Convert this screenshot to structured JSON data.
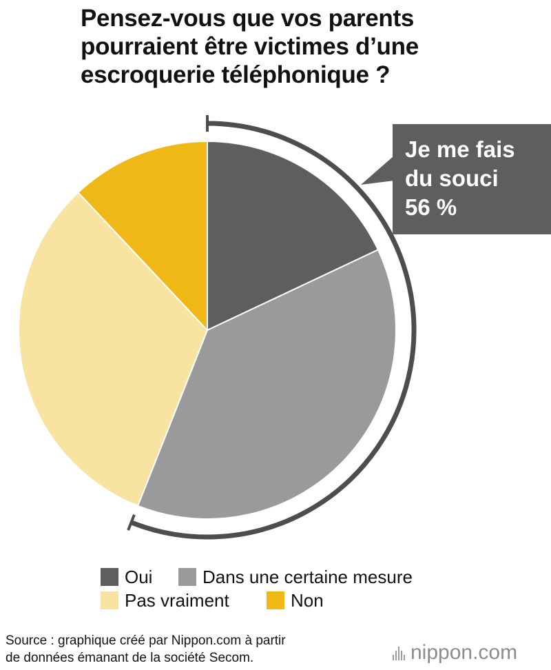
{
  "title_lines": [
    "Pensez-vous que vos parents",
    "pourraient être victimes d’une",
    "escroquerie téléphonique ?"
  ],
  "callout_lines": [
    "Je me fais",
    "du souci",
    "56 %"
  ],
  "source_lines": [
    "Source : graphique créé par Nippon.com à partir",
    "de données émanant de la société Secom."
  ],
  "logo": {
    "name": "nippon",
    "suffix": ".com",
    "icon": "nippon-bars-icon"
  },
  "colors": {
    "oui": "#5e5e5e",
    "certaine": "#9a9a9a",
    "pas_vraiment": "#f8e3a1",
    "non": "#f0b817",
    "bracket": "#4d4d4d"
  },
  "chart_data": {
    "type": "pie",
    "title": "Pensez-vous que vos parents pourraient être victimes d’une escroquerie téléphonique ?",
    "start": "top, clockwise",
    "categories": [
      "Oui",
      "Dans une certaine mesure",
      "Pas vraiment",
      "Non"
    ],
    "values": [
      18,
      38,
      32,
      12
    ],
    "unit": "%",
    "annotation": {
      "text": "Je me fais du souci 56 %",
      "covers": [
        "Oui",
        "Dans une certaine mesure"
      ]
    },
    "legend": [
      {
        "label": "Oui",
        "color": "#5e5e5e"
      },
      {
        "label": "Dans une certaine mesure",
        "color": "#9a9a9a"
      },
      {
        "label": "Pas vraiment",
        "color": "#f8e3a1"
      },
      {
        "label": "Non",
        "color": "#f0b817"
      }
    ]
  }
}
